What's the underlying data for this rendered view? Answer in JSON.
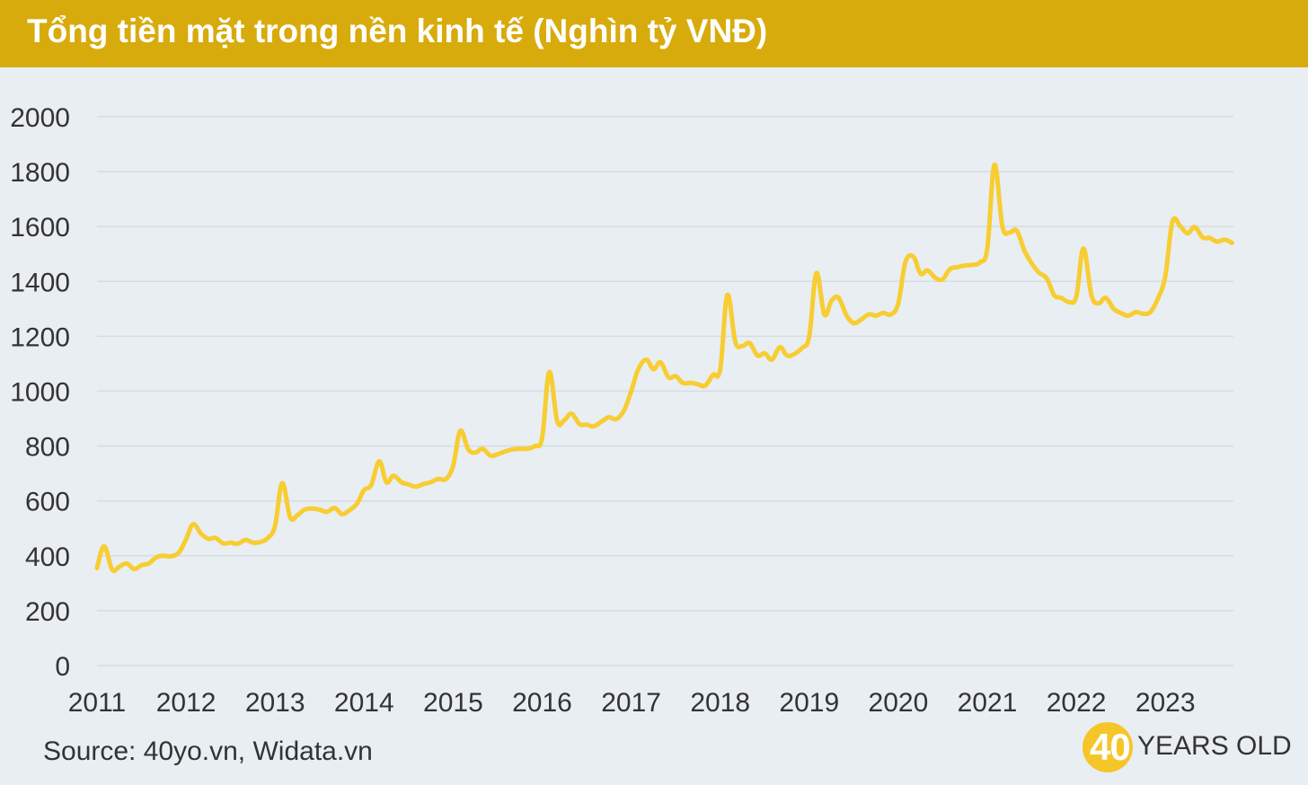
{
  "header": {
    "title": "Tổng tiền mặt trong nền kinh tế (Nghìn tỷ VNĐ)"
  },
  "footer": {
    "source": "Source: 40yo.vn, Widata.vn"
  },
  "logo": {
    "number": "40",
    "text": "YEARS OLD"
  },
  "colors": {
    "header": "#d8ab0c",
    "line": "#f7cd32",
    "background": "#e9eef2",
    "grid": "#d7dce1"
  },
  "chart_data": {
    "type": "line",
    "title": "Tổng tiền mặt trong nền kinh tế (Nghìn tỷ VNĐ)",
    "xlabel": "",
    "ylabel": "",
    "ylim": [
      0,
      2000
    ],
    "xlim": [
      2011,
      2023.75
    ],
    "yticks": [
      "0",
      "200",
      "400",
      "600",
      "800",
      "1000",
      "1200",
      "1400",
      "1600",
      "1800",
      "2000"
    ],
    "xticks": [
      "2011",
      "2012",
      "2013",
      "2014",
      "2015",
      "2016",
      "2017",
      "2018",
      "2019",
      "2020",
      "2021",
      "2022",
      "2023"
    ],
    "grid": true,
    "legend": "none",
    "series": [
      {
        "x": [
          2011.0,
          2011.08,
          2011.17,
          2011.25,
          2011.33,
          2011.42,
          2011.5,
          2011.58,
          2011.67,
          2011.75,
          2011.83,
          2011.92,
          2012.0,
          2012.08,
          2012.17,
          2012.25,
          2012.33,
          2012.42,
          2012.5,
          2012.58,
          2012.67,
          2012.75,
          2012.83,
          2012.92,
          2013.0,
          2013.08,
          2013.17,
          2013.25,
          2013.33,
          2013.42,
          2013.5,
          2013.58,
          2013.67,
          2013.75,
          2013.83,
          2013.92,
          2014.0,
          2014.08,
          2014.17,
          2014.25,
          2014.33,
          2014.42,
          2014.5,
          2014.58,
          2014.67,
          2014.75,
          2014.83,
          2014.92,
          2015.0,
          2015.08,
          2015.17,
          2015.25,
          2015.33,
          2015.42,
          2015.5,
          2015.58,
          2015.67,
          2015.75,
          2015.83,
          2015.92,
          2016.0,
          2016.08,
          2016.17,
          2016.25,
          2016.33,
          2016.42,
          2016.5,
          2016.58,
          2016.67,
          2016.75,
          2016.83,
          2016.92,
          2017.0,
          2017.08,
          2017.17,
          2017.25,
          2017.33,
          2017.42,
          2017.5,
          2017.58,
          2017.67,
          2017.75,
          2017.83,
          2017.92,
          2018.0,
          2018.08,
          2018.17,
          2018.25,
          2018.33,
          2018.42,
          2018.5,
          2018.58,
          2018.67,
          2018.75,
          2018.83,
          2018.92,
          2019.0,
          2019.08,
          2019.17,
          2019.25,
          2019.33,
          2019.42,
          2019.5,
          2019.58,
          2019.67,
          2019.75,
          2019.83,
          2019.92,
          2020.0,
          2020.08,
          2020.17,
          2020.25,
          2020.33,
          2020.42,
          2020.5,
          2020.58,
          2020.67,
          2020.75,
          2020.83,
          2020.92,
          2021.0,
          2021.08,
          2021.17,
          2021.25,
          2021.33,
          2021.42,
          2021.5,
          2021.58,
          2021.67,
          2021.75,
          2021.83,
          2021.92,
          2022.0,
          2022.08,
          2022.17,
          2022.25,
          2022.33,
          2022.42,
          2022.5,
          2022.58,
          2022.67,
          2022.75,
          2022.83,
          2022.92,
          2023.0,
          2023.08,
          2023.17,
          2023.25,
          2023.33,
          2023.42,
          2023.5,
          2023.58,
          2023.67,
          2023.75
        ],
        "values": [
          355,
          435,
          350,
          360,
          372,
          352,
          366,
          372,
          395,
          400,
          398,
          412,
          460,
          515,
          480,
          462,
          465,
          445,
          448,
          444,
          458,
          448,
          450,
          465,
          510,
          665,
          540,
          548,
          568,
          572,
          568,
          560,
          574,
          552,
          565,
          590,
          640,
          658,
          745,
          668,
          692,
          668,
          660,
          652,
          662,
          668,
          680,
          680,
          728,
          855,
          788,
          776,
          790,
          765,
          770,
          780,
          788,
          790,
          790,
          800,
          830,
          1070,
          890,
          895,
          918,
          880,
          878,
          872,
          890,
          905,
          898,
          930,
          1000,
          1080,
          1115,
          1080,
          1105,
          1050,
          1055,
          1030,
          1030,
          1025,
          1020,
          1060,
          1080,
          1350,
          1180,
          1165,
          1175,
          1130,
          1138,
          1115,
          1160,
          1130,
          1135,
          1158,
          1200,
          1430,
          1280,
          1330,
          1340,
          1275,
          1248,
          1260,
          1280,
          1275,
          1285,
          1280,
          1320,
          1470,
          1490,
          1428,
          1440,
          1412,
          1408,
          1445,
          1452,
          1458,
          1460,
          1470,
          1520,
          1825,
          1600,
          1578,
          1585,
          1510,
          1465,
          1432,
          1410,
          1350,
          1340,
          1325,
          1345,
          1520,
          1350,
          1320,
          1340,
          1300,
          1285,
          1275,
          1288,
          1282,
          1288,
          1340,
          1420,
          1618,
          1600,
          1575,
          1598,
          1560,
          1558,
          1545,
          1552,
          1540
        ]
      }
    ]
  }
}
